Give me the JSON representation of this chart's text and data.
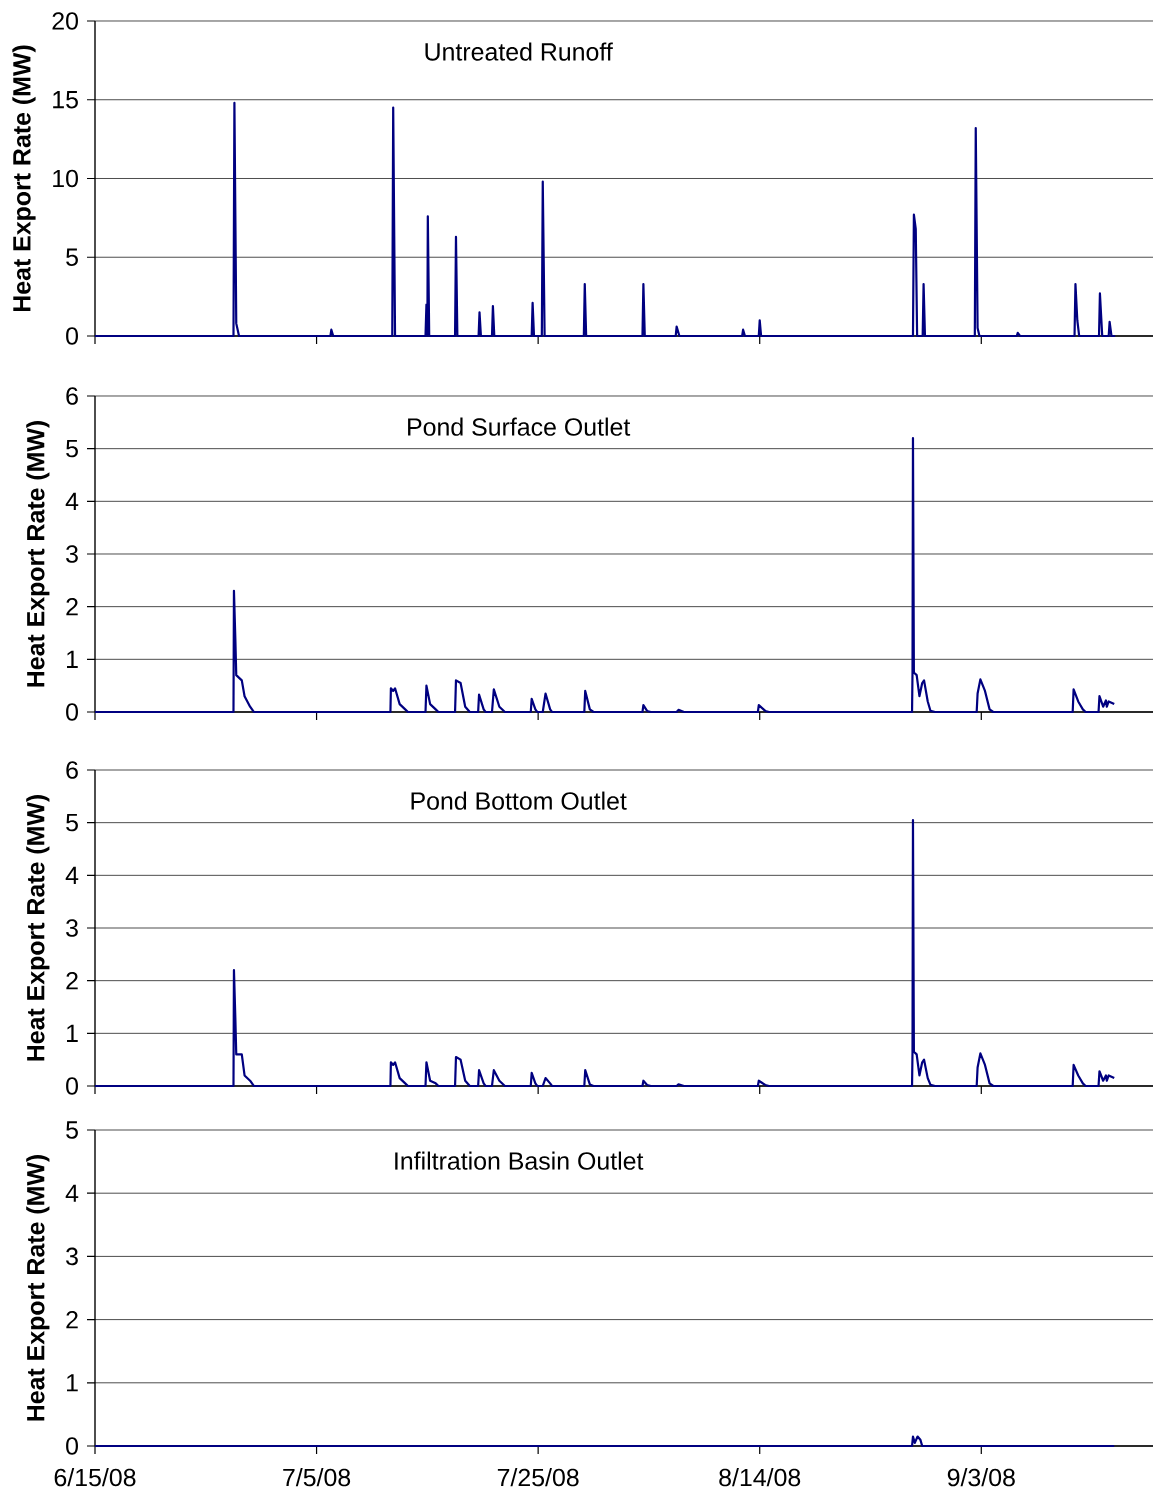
{
  "chart_data": [
    {
      "type": "line",
      "title": "Untreated Runoff",
      "ylabel": "Heat Export Rate (MW)",
      "color": "#000080",
      "xlim": [
        "2008-06-15",
        "2008-09-18T12:00"
      ],
      "ylim": [
        0,
        20
      ],
      "yticks": [
        0,
        5,
        10,
        15,
        20
      ],
      "xticks": [
        {
          "value": "2008-06-15",
          "label": null
        },
        {
          "value": "2008-07-05",
          "label": null
        },
        {
          "value": "2008-07-25",
          "label": null
        },
        {
          "value": "2008-08-14",
          "label": null
        },
        {
          "value": "2008-09-03",
          "label": null
        }
      ],
      "grid": "y",
      "tick_labels": "y",
      "x": [
        "2008-06-15T00:00",
        "2008-06-27T12:00",
        "2008-06-27T14:00",
        "2008-06-27T18:00",
        "2008-06-28T00:00",
        "2008-07-06T06:00",
        "2008-07-06T08:00",
        "2008-07-06T12:00",
        "2008-07-11T20:00",
        "2008-07-11T22:00",
        "2008-07-12T02:00",
        "2008-07-14T20:00",
        "2008-07-14T22:00",
        "2008-07-15T00:00",
        "2008-07-15T01:00",
        "2008-07-15T04:00",
        "2008-07-17T12:00",
        "2008-07-17T14:00",
        "2008-07-17T17:00",
        "2008-07-19T15:00",
        "2008-07-19T17:00",
        "2008-07-19T20:00",
        "2008-07-20T20:00",
        "2008-07-20T22:00",
        "2008-07-21T01:00",
        "2008-07-24T10:00",
        "2008-07-24T12:00",
        "2008-07-24T15:00",
        "2008-07-25T08:00",
        "2008-07-25T10:00",
        "2008-07-25T14:00",
        "2008-07-29T03:00",
        "2008-07-29T05:00",
        "2008-07-29T08:00",
        "2008-08-03T10:00",
        "2008-08-03T12:00",
        "2008-08-03T15:00",
        "2008-08-06T10:00",
        "2008-08-06T12:00",
        "2008-08-06T18:00",
        "2008-08-12T10:00",
        "2008-08-12T12:00",
        "2008-08-12T16:00",
        "2008-08-13T22:00",
        "2008-08-14T00:00",
        "2008-08-14T03:00",
        "2008-08-27T20:00",
        "2008-08-27T22:00",
        "2008-08-28T02:00",
        "2008-08-28T05:00",
        "2008-08-28T17:00",
        "2008-08-28T19:00",
        "2008-08-28T22:00",
        "2008-09-02T10:00",
        "2008-09-02T12:00",
        "2008-09-02T16:00",
        "2008-09-02T20:00",
        "2008-09-06T05:00",
        "2008-09-06T07:00",
        "2008-09-06T12:00",
        "2008-09-11T10:00",
        "2008-09-11T12:00",
        "2008-09-11T16:00",
        "2008-09-11T20:00",
        "2008-09-13T15:00",
        "2008-09-13T17:00",
        "2008-09-13T22:00",
        "2008-09-14T12:00",
        "2008-09-14T14:00",
        "2008-09-14T18:00",
        "2008-09-15T02:00"
      ],
      "values": [
        0,
        0,
        14.8,
        0.8,
        0,
        0,
        0.4,
        0,
        0,
        14.5,
        0,
        0,
        2.0,
        0,
        7.6,
        0,
        0,
        6.3,
        0,
        0,
        1.5,
        0,
        0,
        1.9,
        0,
        0,
        2.1,
        0,
        0,
        9.8,
        0,
        0,
        3.3,
        0,
        0,
        3.3,
        0,
        0,
        0.6,
        0,
        0,
        0.4,
        0,
        0,
        1.0,
        0,
        0,
        7.7,
        6.8,
        0,
        0,
        3.3,
        0,
        0,
        13.2,
        0.5,
        0,
        0,
        0.2,
        0,
        0,
        3.3,
        1.0,
        0,
        0,
        2.7,
        0,
        0,
        0.9,
        0,
        0
      ]
    },
    {
      "type": "line",
      "title": "Pond Surface Outlet",
      "ylabel": "Heat Export Rate (MW)",
      "color": "#000080",
      "xlim": [
        "2008-06-15",
        "2008-09-18T12:00"
      ],
      "ylim": [
        0,
        6
      ],
      "yticks": [
        0,
        1,
        2,
        3,
        4,
        5,
        6
      ],
      "xticks": [
        {
          "value": "2008-06-15",
          "label": null
        },
        {
          "value": "2008-07-05",
          "label": null
        },
        {
          "value": "2008-07-25",
          "label": null
        },
        {
          "value": "2008-08-14",
          "label": null
        },
        {
          "value": "2008-09-03",
          "label": null
        }
      ],
      "grid": "y",
      "tick_labels": "y",
      "x": [
        "2008-06-15T00:00",
        "2008-06-27T12:00",
        "2008-06-27T13:00",
        "2008-06-27T16:00",
        "2008-06-27T18:00",
        "2008-06-28T06:00",
        "2008-06-28T12:00",
        "2008-06-29T00:00",
        "2008-06-29T08:00",
        "2008-07-11T16:00",
        "2008-07-11T17:00",
        "2008-07-11T22:00",
        "2008-07-12T02:00",
        "2008-07-12T12:00",
        "2008-07-13T00:00",
        "2008-07-13T06:00",
        "2008-07-14T20:00",
        "2008-07-14T22:00",
        "2008-07-15T06:00",
        "2008-07-15T18:00",
        "2008-07-16T00:00",
        "2008-07-17T12:00",
        "2008-07-17T14:00",
        "2008-07-18T00:00",
        "2008-07-18T10:00",
        "2008-07-18T20:00",
        "2008-07-19T14:00",
        "2008-07-19T16:00",
        "2008-07-20T02:00",
        "2008-07-20T06:00",
        "2008-07-20T20:00",
        "2008-07-21T00:00",
        "2008-07-21T12:00",
        "2008-07-22T00:00",
        "2008-07-24T08:00",
        "2008-07-24T10:00",
        "2008-07-24T18:00",
        "2008-07-24T22:00",
        "2008-07-25T10:00",
        "2008-07-25T16:00",
        "2008-07-26T02:00",
        "2008-07-26T06:00",
        "2008-07-29T04:00",
        "2008-07-29T06:00",
        "2008-07-29T16:00",
        "2008-07-30T00:00",
        "2008-08-03T10:00",
        "2008-08-03T12:00",
        "2008-08-03T20:00",
        "2008-08-04T04:00",
        "2008-08-06T12:00",
        "2008-08-06T16:00",
        "2008-08-07T04:00",
        "2008-08-13T20:00",
        "2008-08-13T22:00",
        "2008-08-14T12:00",
        "2008-08-14T20:00",
        "2008-08-27T18:00",
        "2008-08-27T19:00",
        "2008-08-27T20:00",
        "2008-08-27T22:00",
        "2008-08-28T04:00",
        "2008-08-28T10:00",
        "2008-08-28T16:00",
        "2008-08-28T20:00",
        "2008-08-29T04:00",
        "2008-08-29T10:00",
        "2008-08-29T20:00",
        "2008-09-02T14:00",
        "2008-09-02T16:00",
        "2008-09-02T22:00",
        "2008-09-03T08:00",
        "2008-09-03T18:00",
        "2008-09-04T02:00",
        "2008-09-11T06:00",
        "2008-09-11T08:00",
        "2008-09-11T18:00",
        "2008-09-12T04:00",
        "2008-09-12T10:00",
        "2008-09-13T14:00",
        "2008-09-13T16:00",
        "2008-09-14T00:00",
        "2008-09-14T06:00",
        "2008-09-14T08:00",
        "2008-09-14T12:00",
        "2008-09-15T00:00"
      ],
      "values": [
        0,
        0,
        2.3,
        1.4,
        0.7,
        0.6,
        0.3,
        0.1,
        0,
        0,
        0.45,
        0.4,
        0.45,
        0.15,
        0.05,
        0,
        0,
        0.5,
        0.15,
        0.05,
        0,
        0,
        0.6,
        0.55,
        0.1,
        0,
        0,
        0.33,
        0.05,
        0,
        0,
        0.43,
        0.1,
        0,
        0,
        0.25,
        0.05,
        0,
        0,
        0.35,
        0.05,
        0,
        0,
        0.4,
        0.05,
        0,
        0,
        0.13,
        0.02,
        0,
        0,
        0.04,
        0,
        0,
        0.13,
        0.02,
        0,
        0,
        0.75,
        5.2,
        0.75,
        0.7,
        0.3,
        0.55,
        0.6,
        0.2,
        0.02,
        0,
        0,
        0.35,
        0.62,
        0.4,
        0.05,
        0,
        0,
        0.43,
        0.2,
        0.05,
        0,
        0,
        0.3,
        0.1,
        0.22,
        0.1,
        0.2,
        0.15
      ]
    },
    {
      "type": "line",
      "title": "Pond Bottom Outlet",
      "ylabel": "Heat Export Rate (MW)",
      "color": "#000080",
      "xlim": [
        "2008-06-15",
        "2008-09-18T12:00"
      ],
      "ylim": [
        0,
        6
      ],
      "yticks": [
        0,
        1,
        2,
        3,
        4,
        5,
        6
      ],
      "xticks": [
        {
          "value": "2008-06-15",
          "label": null
        },
        {
          "value": "2008-07-05",
          "label": null
        },
        {
          "value": "2008-07-25",
          "label": null
        },
        {
          "value": "2008-08-14",
          "label": null
        },
        {
          "value": "2008-09-03",
          "label": null
        }
      ],
      "grid": "y",
      "tick_labels": "y",
      "x": [
        "2008-06-15T00:00",
        "2008-06-27T12:00",
        "2008-06-27T13:00",
        "2008-06-27T16:00",
        "2008-06-27T18:00",
        "2008-06-28T06:00",
        "2008-06-28T12:00",
        "2008-06-29T00:00",
        "2008-06-29T08:00",
        "2008-07-11T16:00",
        "2008-07-11T17:00",
        "2008-07-11T22:00",
        "2008-07-12T02:00",
        "2008-07-12T12:00",
        "2008-07-13T00:00",
        "2008-07-13T06:00",
        "2008-07-14T20:00",
        "2008-07-14T22:00",
        "2008-07-15T06:00",
        "2008-07-15T18:00",
        "2008-07-16T00:00",
        "2008-07-17T12:00",
        "2008-07-17T14:00",
        "2008-07-18T00:00",
        "2008-07-18T10:00",
        "2008-07-18T20:00",
        "2008-07-19T14:00",
        "2008-07-19T16:00",
        "2008-07-20T02:00",
        "2008-07-20T06:00",
        "2008-07-20T20:00",
        "2008-07-21T00:00",
        "2008-07-21T12:00",
        "2008-07-22T00:00",
        "2008-07-24T08:00",
        "2008-07-24T10:00",
        "2008-07-24T18:00",
        "2008-07-24T22:00",
        "2008-07-25T10:00",
        "2008-07-25T16:00",
        "2008-07-26T02:00",
        "2008-07-26T06:00",
        "2008-07-29T04:00",
        "2008-07-29T06:00",
        "2008-07-29T16:00",
        "2008-07-30T00:00",
        "2008-08-03T10:00",
        "2008-08-03T12:00",
        "2008-08-03T20:00",
        "2008-08-04T04:00",
        "2008-08-06T12:00",
        "2008-08-06T16:00",
        "2008-08-07T04:00",
        "2008-08-13T20:00",
        "2008-08-13T22:00",
        "2008-08-14T12:00",
        "2008-08-14T20:00",
        "2008-08-27T18:00",
        "2008-08-27T19:00",
        "2008-08-27T20:00",
        "2008-08-27T22:00",
        "2008-08-28T04:00",
        "2008-08-28T10:00",
        "2008-08-28T16:00",
        "2008-08-28T20:00",
        "2008-08-29T04:00",
        "2008-08-29T10:00",
        "2008-08-29T20:00",
        "2008-09-02T14:00",
        "2008-09-02T16:00",
        "2008-09-02T22:00",
        "2008-09-03T08:00",
        "2008-09-03T18:00",
        "2008-09-04T02:00",
        "2008-09-11T06:00",
        "2008-09-11T08:00",
        "2008-09-11T18:00",
        "2008-09-12T04:00",
        "2008-09-12T10:00",
        "2008-09-13T14:00",
        "2008-09-13T16:00",
        "2008-09-14T00:00",
        "2008-09-14T06:00",
        "2008-09-14T08:00",
        "2008-09-14T12:00",
        "2008-09-15T00:00"
      ],
      "values": [
        0,
        0,
        2.2,
        1.3,
        0.6,
        0.6,
        0.2,
        0.1,
        0,
        0,
        0.45,
        0.4,
        0.45,
        0.15,
        0.05,
        0,
        0,
        0.45,
        0.1,
        0.05,
        0,
        0,
        0.55,
        0.5,
        0.1,
        0,
        0,
        0.3,
        0.05,
        0,
        0,
        0.3,
        0.1,
        0,
        0,
        0.25,
        0.05,
        0,
        0,
        0.15,
        0.05,
        0,
        0,
        0.3,
        0.03,
        0,
        0,
        0.1,
        0.02,
        0,
        0,
        0.03,
        0,
        0,
        0.1,
        0.02,
        0,
        0,
        0.65,
        5.05,
        0.65,
        0.6,
        0.2,
        0.45,
        0.5,
        0.15,
        0.02,
        0,
        0,
        0.35,
        0.62,
        0.4,
        0.05,
        0,
        0,
        0.4,
        0.2,
        0.05,
        0,
        0,
        0.28,
        0.1,
        0.2,
        0.1,
        0.2,
        0.15
      ]
    },
    {
      "type": "line",
      "title": "Infiltration Basin Outlet",
      "ylabel": "Heat Export Rate (MW)",
      "color": "#000080",
      "xlim": [
        "2008-06-15",
        "2008-09-18T12:00"
      ],
      "ylim": [
        0,
        5
      ],
      "yticks": [
        0,
        1,
        2,
        3,
        4,
        5
      ],
      "xticks": [
        {
          "value": "2008-06-15",
          "label": "6/15/08"
        },
        {
          "value": "2008-07-05",
          "label": "7/5/08"
        },
        {
          "value": "2008-07-25",
          "label": "7/25/08"
        },
        {
          "value": "2008-08-14",
          "label": "8/14/08"
        },
        {
          "value": "2008-09-03",
          "label": "9/3/08"
        }
      ],
      "grid": "y",
      "x": [
        "2008-06-15T00:00",
        "2008-08-27T18:00",
        "2008-08-27T20:00",
        "2008-08-28T00:00",
        "2008-08-28T06:00",
        "2008-08-28T12:00",
        "2008-08-28T16:00",
        "2008-09-15T00:00"
      ],
      "values": [
        0,
        0,
        0.15,
        0.05,
        0.15,
        0.1,
        0,
        0
      ]
    }
  ]
}
